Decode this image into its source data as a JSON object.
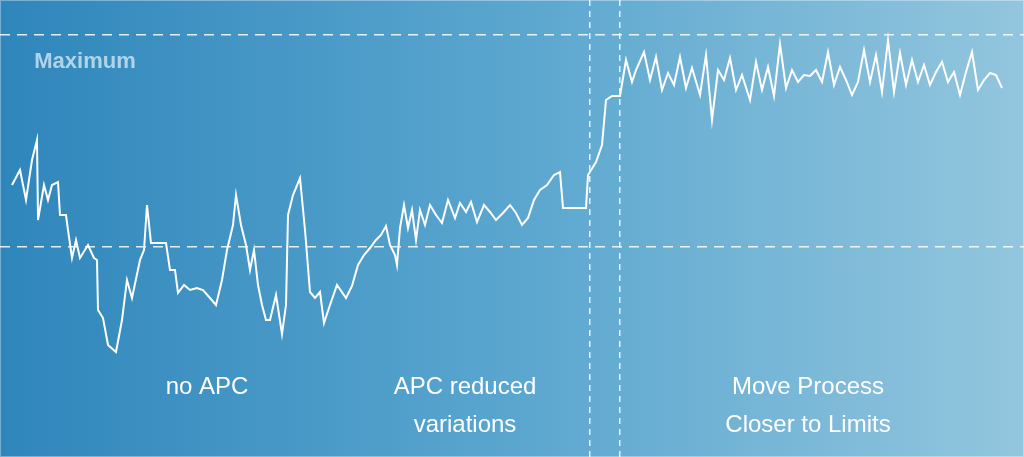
{
  "chart_data": {
    "type": "line",
    "x": [
      12,
      20,
      26,
      32,
      37,
      38,
      44,
      48,
      52,
      58,
      60,
      66,
      68,
      72,
      76,
      80,
      88,
      94,
      97,
      98,
      103,
      108,
      116,
      122,
      127,
      132,
      140,
      144,
      147,
      151,
      160,
      166,
      170,
      175,
      178,
      184,
      190,
      197,
      203,
      210,
      216,
      222,
      227,
      233,
      236,
      241,
      246,
      250,
      254,
      258,
      262,
      266,
      270,
      276,
      282,
      286,
      288,
      293,
      300,
      305,
      310,
      315,
      320,
      324,
      330,
      337,
      346,
      352,
      358,
      364,
      370,
      376,
      381,
      386,
      390,
      395,
      397,
      400,
      404,
      408,
      412,
      416,
      420,
      425,
      430,
      436,
      442,
      448,
      455,
      460,
      466,
      471,
      477,
      484,
      490,
      496,
      503,
      510,
      516,
      522,
      528,
      534,
      540,
      547,
      554,
      560,
      563,
      586,
      588,
      596,
      602,
      606,
      612,
      620,
      626,
      632,
      636,
      644,
      650,
      656,
      662,
      668,
      674,
      680,
      686,
      692,
      700,
      706,
      712,
      718,
      724,
      730,
      736,
      742,
      750,
      756,
      762,
      768,
      774,
      780,
      786,
      792,
      798,
      804,
      810,
      816,
      822,
      828,
      834,
      840,
      846,
      852,
      858,
      864,
      870,
      876,
      882,
      888,
      894,
      900,
      906,
      912,
      918,
      924,
      930,
      936,
      942,
      948,
      954,
      960,
      966,
      972,
      978,
      984,
      990,
      996,
      1002
    ],
    "series": [
      {
        "color": "#ffffff",
        "values": [
          272,
          287,
          257,
          297,
          317,
          237,
          272,
          257,
          272,
          275,
          242,
          242,
          227,
          199,
          217,
          199,
          212,
          199,
          197,
          147,
          139,
          112,
          105,
          137,
          177,
          159,
          197,
          207,
          252,
          214,
          214,
          214,
          187,
          187,
          164,
          172,
          167,
          169,
          167,
          159,
          152,
          177,
          207,
          232,
          262,
          232,
          212,
          187,
          207,
          172,
          152,
          137,
          137,
          162,
          123,
          152,
          242,
          262,
          279,
          227,
          165,
          159,
          165,
          134,
          152,
          172,
          159,
          171,
          192,
          202,
          209,
          217,
          222,
          231,
          212,
          202,
          192,
          229,
          252,
          229,
          247,
          217,
          247,
          232,
          252,
          242,
          234,
          257,
          239,
          254,
          245,
          255,
          235,
          252,
          245,
          237,
          244,
          252,
          244,
          232,
          239,
          257,
          267,
          272,
          282,
          285,
          249,
          249,
          282,
          295,
          312,
          357,
          361,
          361,
          397,
          375,
          387,
          405,
          377,
          400,
          367,
          384,
          372,
          400,
          369,
          389,
          362,
          402,
          337,
          387,
          377,
          399,
          367,
          382,
          357,
          395,
          367,
          390,
          361,
          413,
          369,
          387,
          375,
          382,
          381,
          387,
          375,
          405,
          372,
          390,
          377,
          362,
          375,
          407,
          375,
          402,
          365,
          417,
          365,
          404,
          372,
          397,
          375,
          392,
          372,
          385,
          395,
          375,
          385,
          362,
          385,
          405,
          367,
          377,
          384,
          382,
          369
        ]
      }
    ],
    "xlim": [
      0,
      1024
    ],
    "ylim": [
      0,
      457
    ],
    "xticks": [
      590,
      620
    ],
    "yticks": [
      210,
      422
    ],
    "grid": true,
    "tick_labels": false,
    "line_style": "solid",
    "annotations": [
      {
        "text": "Maximum",
        "x": 85,
        "y": 395
      },
      {
        "text": "no APC",
        "x": 207,
        "y": 70
      },
      {
        "text": "APC reduced\nvariations",
        "x": 465,
        "y": 51
      },
      {
        "text": "Move Process\nCloser to Limits",
        "x": 808,
        "y": 51
      }
    ]
  }
}
